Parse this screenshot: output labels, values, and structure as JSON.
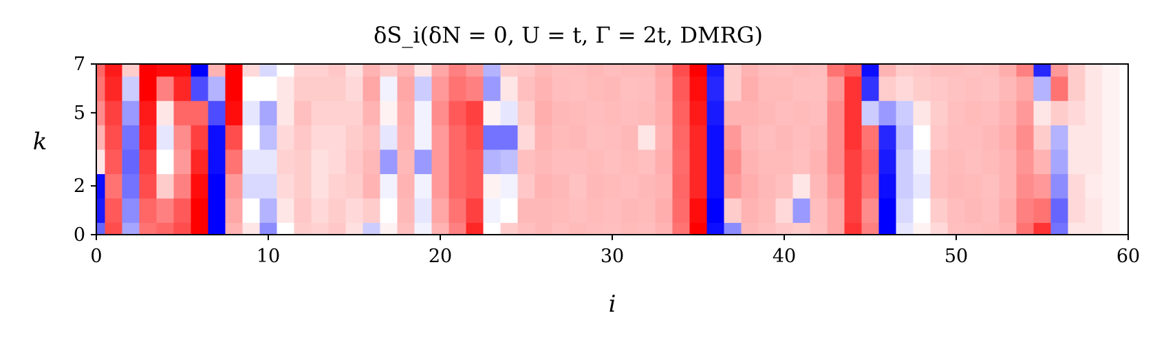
{
  "chart_data": {
    "type": "heatmap",
    "title": "δS_i(δN = 0, U = t, Γ = 2t,  DMRG)",
    "xlabel": "i",
    "ylabel": "k",
    "xlim": [
      0,
      60
    ],
    "ylim": [
      0,
      7
    ],
    "x_ticks": [
      "0",
      "10",
      "20",
      "30",
      "40",
      "50",
      "60"
    ],
    "y_ticks": [
      "0",
      "2",
      "5",
      "7"
    ],
    "y_tick_values": [
      0,
      2,
      5,
      7
    ],
    "colormap": "bwr",
    "value_range": [
      -1,
      1
    ],
    "colors": {
      "positive": "#ff0000",
      "neutral": "#ffffff",
      "negative": "#0000ff"
    },
    "k_rows": [
      0,
      1,
      2,
      3,
      4,
      5,
      6,
      7
    ],
    "columns": [
      {
        "i": 0,
        "v": [
          -0.6,
          -0.9,
          -0.95,
          0.1,
          0.3,
          0.45,
          0.55,
          0.6
        ]
      },
      {
        "i": 1,
        "v": [
          0.7,
          0.65,
          0.55,
          0.65,
          0.7,
          0.75,
          0.85,
          0.9
        ]
      },
      {
        "i": 2,
        "v": [
          -0.35,
          -0.45,
          -0.55,
          -0.6,
          -0.55,
          -0.4,
          -0.2,
          0.2
        ]
      },
      {
        "i": 3,
        "v": [
          0.55,
          0.6,
          0.7,
          0.75,
          0.85,
          0.9,
          1.0,
          1.0
        ]
      },
      {
        "i": 4,
        "v": [
          0.6,
          0.5,
          0.2,
          0.0,
          -0.1,
          0.1,
          0.5,
          0.95
        ]
      },
      {
        "i": 5,
        "v": [
          0.7,
          0.65,
          0.5,
          0.4,
          0.45,
          0.6,
          0.85,
          0.95
        ]
      },
      {
        "i": 6,
        "v": [
          1.0,
          1.0,
          0.95,
          0.85,
          0.75,
          0.6,
          -0.7,
          -1.0
        ]
      },
      {
        "i": 7,
        "v": [
          -1.0,
          -1.0,
          -1.0,
          -0.95,
          -0.95,
          -0.7,
          -0.3,
          0.3
        ]
      },
      {
        "i": 8,
        "v": [
          0.3,
          0.35,
          0.4,
          0.55,
          0.7,
          0.95,
          1.0,
          1.0
        ]
      },
      {
        "i": 9,
        "v": [
          0.1,
          0.0,
          -0.15,
          -0.1,
          0.0,
          -0.1,
          0.0,
          0.15
        ]
      },
      {
        "i": 10,
        "v": [
          -0.45,
          -0.3,
          -0.15,
          -0.1,
          -0.25,
          -0.35,
          0.0,
          -0.15
        ]
      },
      {
        "i": 11,
        "v": [
          0.0,
          0.1,
          0.15,
          0.18,
          0.15,
          0.1,
          0.1,
          0.0
        ]
      },
      {
        "i": 12,
        "v": [
          0.2,
          0.22,
          0.2,
          0.2,
          0.22,
          0.25,
          0.2,
          0.18
        ]
      },
      {
        "i": 13,
        "v": [
          0.18,
          0.15,
          0.12,
          0.12,
          0.15,
          0.18,
          0.2,
          0.18
        ]
      },
      {
        "i": 14,
        "v": [
          0.22,
          0.2,
          0.18,
          0.15,
          0.15,
          0.18,
          0.2,
          0.22
        ]
      },
      {
        "i": 15,
        "v": [
          0.12,
          0.15,
          0.2,
          0.22,
          0.2,
          0.18,
          0.15,
          0.12
        ]
      },
      {
        "i": 16,
        "v": [
          -0.2,
          0.2,
          0.3,
          0.28,
          0.25,
          0.3,
          0.35,
          0.3
        ]
      },
      {
        "i": 17,
        "v": [
          0.05,
          0.0,
          -0.05,
          -0.4,
          -0.1,
          0.05,
          -0.05,
          0.2
        ]
      },
      {
        "i": 18,
        "v": [
          0.25,
          0.28,
          0.3,
          0.28,
          0.3,
          0.32,
          0.35,
          0.3
        ]
      },
      {
        "i": 19,
        "v": [
          -0.05,
          -0.1,
          -0.05,
          -0.4,
          -0.05,
          -0.05,
          -0.2,
          0.1
        ]
      },
      {
        "i": 20,
        "v": [
          0.3,
          0.35,
          0.4,
          0.4,
          0.4,
          0.45,
          0.4,
          0.35
        ]
      },
      {
        "i": 21,
        "v": [
          0.5,
          0.55,
          0.6,
          0.6,
          0.6,
          0.65,
          0.55,
          0.5
        ]
      },
      {
        "i": 22,
        "v": [
          0.85,
          0.75,
          0.65,
          0.65,
          0.7,
          0.75,
          0.5,
          0.4
        ]
      },
      {
        "i": 23,
        "v": [
          0.0,
          -0.05,
          0.05,
          -0.3,
          -0.55,
          0.05,
          -0.4,
          -0.3
        ]
      },
      {
        "i": 24,
        "v": [
          0.2,
          0.0,
          -0.05,
          -0.25,
          -0.55,
          -0.1,
          0.1,
          0.2
        ]
      },
      {
        "i": 25,
        "v": [
          0.25,
          0.28,
          0.22,
          0.25,
          0.15,
          0.2,
          0.25,
          0.22
        ]
      },
      {
        "i": 26,
        "v": [
          0.28,
          0.28,
          0.3,
          0.28,
          0.3,
          0.32,
          0.3,
          0.28
        ]
      },
      {
        "i": 27,
        "v": [
          0.25,
          0.27,
          0.28,
          0.26,
          0.27,
          0.28,
          0.26,
          0.25
        ]
      },
      {
        "i": 28,
        "v": [
          0.27,
          0.25,
          0.24,
          0.26,
          0.28,
          0.27,
          0.25,
          0.26
        ]
      },
      {
        "i": 29,
        "v": [
          0.26,
          0.27,
          0.28,
          0.27,
          0.25,
          0.26,
          0.27,
          0.28
        ]
      },
      {
        "i": 30,
        "v": [
          0.25,
          0.26,
          0.27,
          0.25,
          0.26,
          0.27,
          0.28,
          0.26
        ]
      },
      {
        "i": 31,
        "v": [
          0.27,
          0.28,
          0.26,
          0.27,
          0.28,
          0.26,
          0.25,
          0.27
        ]
      },
      {
        "i": 32,
        "v": [
          0.26,
          0.27,
          0.28,
          0.25,
          0.1,
          0.27,
          0.26,
          0.27
        ]
      },
      {
        "i": 33,
        "v": [
          0.3,
          0.32,
          0.3,
          0.32,
          0.3,
          0.32,
          0.33,
          0.35
        ]
      },
      {
        "i": 34,
        "v": [
          0.55,
          0.58,
          0.6,
          0.58,
          0.6,
          0.62,
          0.65,
          0.7
        ]
      },
      {
        "i": 35,
        "v": [
          1.0,
          0.95,
          0.85,
          0.85,
          0.85,
          0.9,
          0.95,
          1.0
        ]
      },
      {
        "i": 36,
        "v": [
          -0.95,
          -1.0,
          -0.95,
          -0.95,
          -0.95,
          -0.9,
          -0.85,
          -0.9
        ]
      },
      {
        "i": 37,
        "v": [
          -0.45,
          0.2,
          0.4,
          0.45,
          0.4,
          0.3,
          0.2,
          0.2
        ]
      },
      {
        "i": 38,
        "v": [
          0.28,
          0.3,
          0.32,
          0.3,
          0.28,
          0.3,
          0.32,
          0.3
        ]
      },
      {
        "i": 39,
        "v": [
          0.25,
          0.27,
          0.28,
          0.27,
          0.26,
          0.28,
          0.27,
          0.26
        ]
      },
      {
        "i": 40,
        "v": [
          0.22,
          0.15,
          0.25,
          0.27,
          0.28,
          0.26,
          0.27,
          0.25
        ]
      },
      {
        "i": 41,
        "v": [
          0.2,
          -0.4,
          0.1,
          0.25,
          0.26,
          0.27,
          0.25,
          0.27
        ]
      },
      {
        "i": 42,
        "v": [
          0.25,
          0.26,
          0.28,
          0.3,
          0.28,
          0.26,
          0.25,
          0.26
        ]
      },
      {
        "i": 43,
        "v": [
          0.35,
          0.35,
          0.4,
          0.45,
          0.45,
          0.45,
          0.4,
          0.55
        ]
      },
      {
        "i": 44,
        "v": [
          0.8,
          0.75,
          0.75,
          0.75,
          0.8,
          0.8,
          0.8,
          0.65
        ]
      },
      {
        "i": 45,
        "v": [
          0.5,
          0.45,
          0.55,
          0.6,
          0.55,
          -0.2,
          -0.8,
          -0.95
        ]
      },
      {
        "i": 46,
        "v": [
          -1.0,
          -1.0,
          -0.95,
          -0.9,
          -0.85,
          -0.4,
          0.2,
          0.3
        ]
      },
      {
        "i": 47,
        "v": [
          -0.1,
          -0.15,
          -0.2,
          -0.2,
          -0.25,
          -0.2,
          0.15,
          0.2
        ]
      },
      {
        "i": 48,
        "v": [
          0.05,
          0.0,
          -0.1,
          -0.05,
          0.0,
          0.1,
          0.2,
          0.22
        ]
      },
      {
        "i": 49,
        "v": [
          0.15,
          0.2,
          0.25,
          0.25,
          0.22,
          0.2,
          0.22,
          0.25
        ]
      },
      {
        "i": 50,
        "v": [
          0.25,
          0.26,
          0.28,
          0.27,
          0.26,
          0.25,
          0.24,
          0.25
        ]
      },
      {
        "i": 51,
        "v": [
          0.26,
          0.28,
          0.27,
          0.25,
          0.26,
          0.27,
          0.25,
          0.24
        ]
      },
      {
        "i": 52,
        "v": [
          0.27,
          0.26,
          0.25,
          0.27,
          0.28,
          0.26,
          0.24,
          0.25
        ]
      },
      {
        "i": 53,
        "v": [
          0.3,
          0.32,
          0.3,
          0.3,
          0.32,
          0.3,
          0.28,
          0.32
        ]
      },
      {
        "i": 54,
        "v": [
          0.55,
          0.5,
          0.45,
          0.42,
          0.45,
          0.4,
          0.35,
          0.5
        ]
      },
      {
        "i": 55,
        "v": [
          0.8,
          0.55,
          0.4,
          0.3,
          0.2,
          0.1,
          -0.3,
          -0.85
        ]
      },
      {
        "i": 56,
        "v": [
          -0.55,
          -0.6,
          -0.45,
          -0.35,
          -0.3,
          0.2,
          0.55,
          0.4
        ]
      },
      {
        "i": 57,
        "v": [
          0.1,
          0.15,
          0.15,
          0.1,
          0.1,
          0.15,
          0.2,
          0.2
        ]
      },
      {
        "i": 58,
        "v": [
          0.1,
          0.1,
          0.08,
          0.1,
          0.1,
          0.1,
          0.1,
          0.1
        ]
      },
      {
        "i": 59,
        "v": [
          0.05,
          0.05,
          0.05,
          0.05,
          0.05,
          0.05,
          0.05,
          0.05
        ]
      },
      {
        "i": 60,
        "v": [
          0.0,
          0.0,
          0.0,
          0.0,
          0.0,
          0.0,
          0.0,
          0.0
        ]
      }
    ]
  }
}
